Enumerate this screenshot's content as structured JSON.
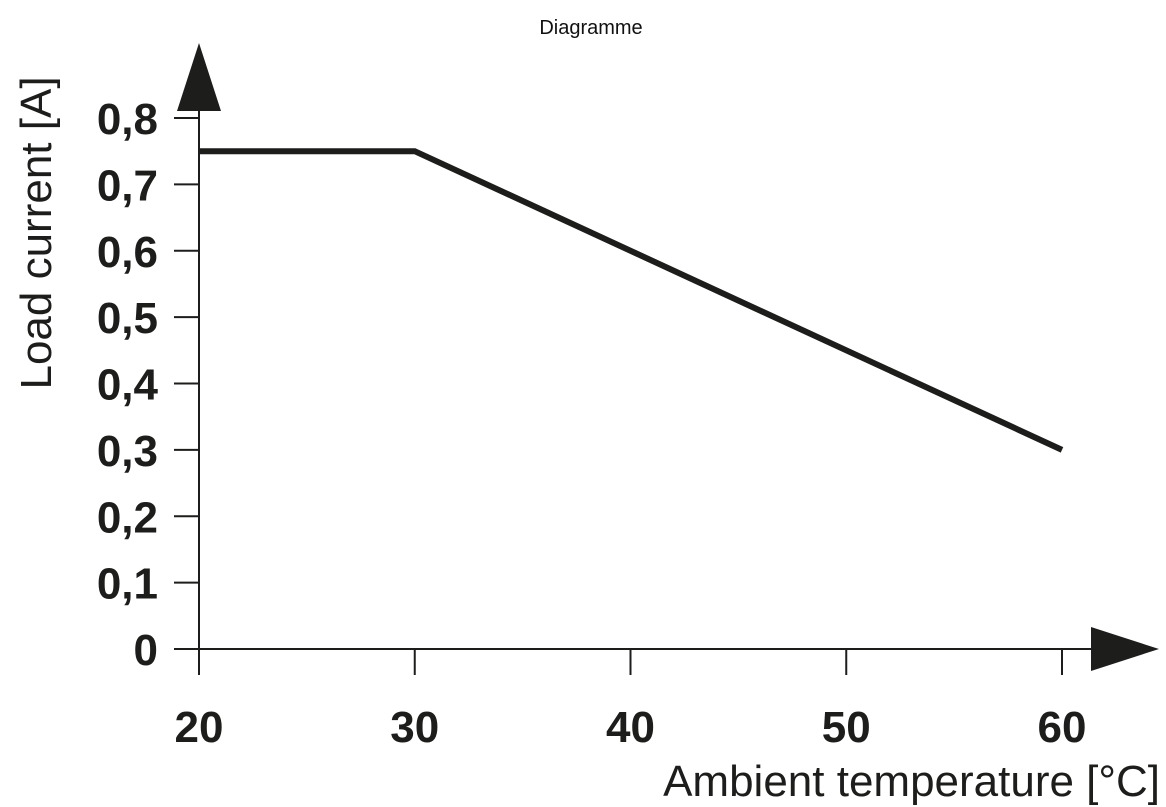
{
  "chart_data": {
    "type": "line",
    "title": "Diagramme",
    "xlabel": "Ambient temperature [°C]",
    "ylabel": "Load current [A]",
    "x_ticks": [
      "20",
      "30",
      "40",
      "50",
      "60"
    ],
    "y_ticks": [
      "0",
      "0,1",
      "0,2",
      "0,3",
      "0,4",
      "0,5",
      "0,6",
      "0,7",
      "0,8"
    ],
    "xlim": [
      20,
      60
    ],
    "ylim": [
      0,
      0.8
    ],
    "grid": false,
    "series": [
      {
        "x": [
          20,
          30,
          60
        ],
        "y": [
          0.75,
          0.75,
          0.3
        ]
      }
    ]
  },
  "colors": {
    "line": "#1d1d1b",
    "axis": "#1d1d1b",
    "background": "#ffffff"
  }
}
